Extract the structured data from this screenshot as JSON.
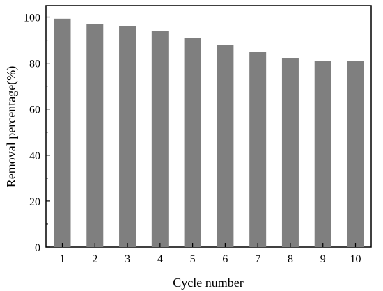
{
  "chart_data": {
    "type": "bar",
    "categories": [
      "1",
      "2",
      "3",
      "4",
      "5",
      "6",
      "7",
      "8",
      "9",
      "10"
    ],
    "values": [
      99.3,
      97.1,
      96.1,
      94.0,
      91.0,
      88.0,
      85.0,
      82.0,
      81.0,
      81.0
    ],
    "xlabel": "Cycle number",
    "ylabel": "Removal percentage(%)",
    "ylim": [
      0,
      105
    ],
    "yticks": [
      "0",
      "20",
      "40",
      "60",
      "80",
      "100"
    ],
    "grid": false,
    "bar_color": "#7f7f7f"
  }
}
